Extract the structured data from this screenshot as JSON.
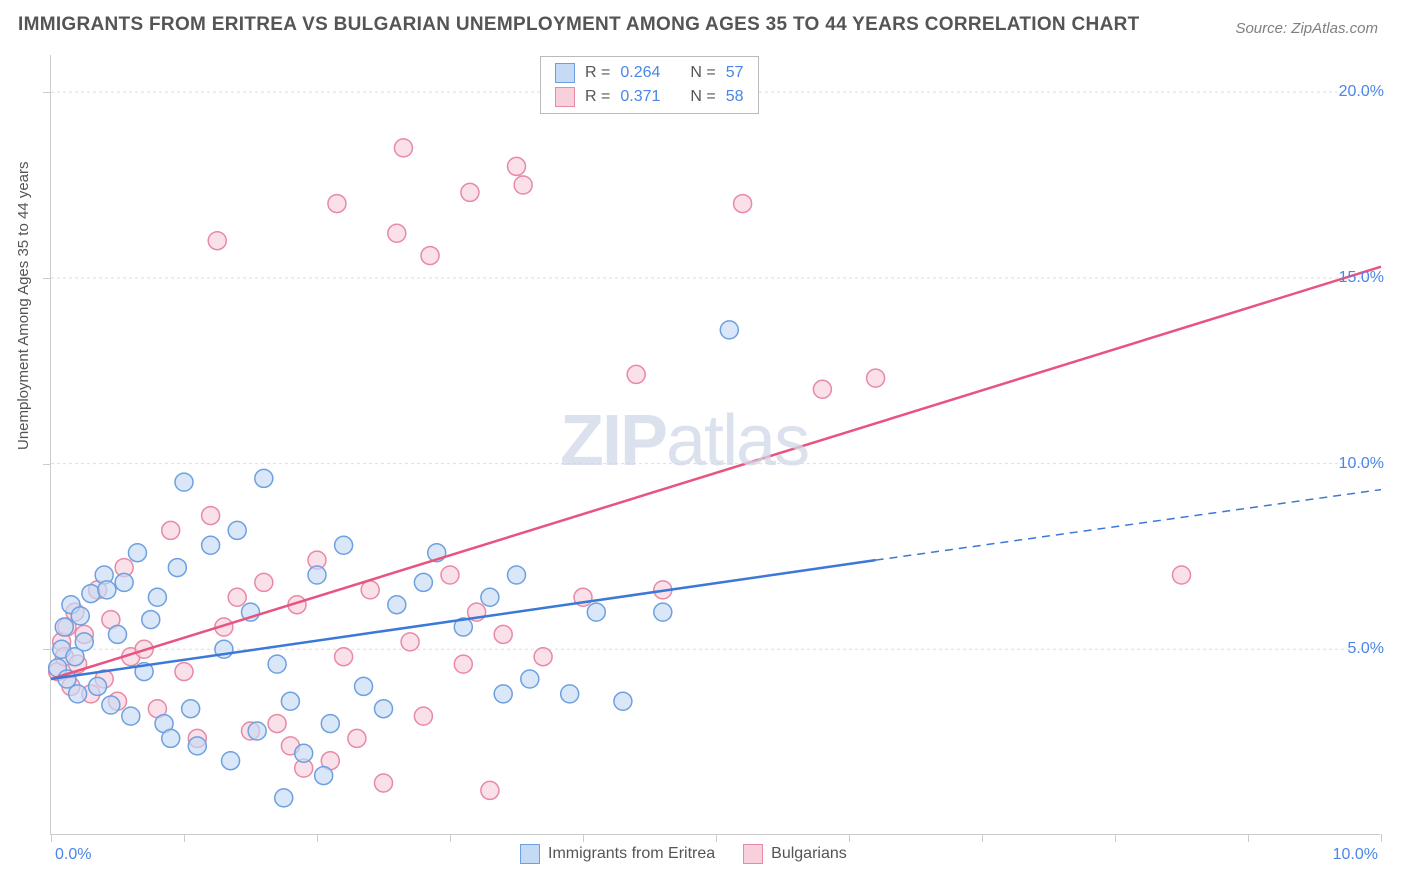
{
  "title": "IMMIGRANTS FROM ERITREA VS BULGARIAN UNEMPLOYMENT AMONG AGES 35 TO 44 YEARS CORRELATION CHART",
  "source": "Source: ZipAtlas.com",
  "y_axis_label": "Unemployment Among Ages 35 to 44 years",
  "watermark_a": "ZIP",
  "watermark_b": "atlas",
  "chart": {
    "type": "scatter",
    "background_color": "#ffffff",
    "grid_color": "#dddddd",
    "axis_color": "#cccccc",
    "tick_label_color": "#4a86e8",
    "text_color": "#555555",
    "xlim": [
      0,
      10
    ],
    "ylim": [
      0,
      21
    ],
    "y_ticks": [
      5,
      10,
      15,
      20
    ],
    "y_tick_labels": [
      "5.0%",
      "10.0%",
      "15.0%",
      "20.0%"
    ],
    "x_tick_edge_labels": [
      "0.0%",
      "10.0%"
    ],
    "x_minor_ticks": [
      0,
      1,
      2,
      3,
      4,
      5,
      6,
      7,
      8,
      9,
      10
    ],
    "point_radius": 9,
    "series": [
      {
        "name": "Immigrants from Eritrea",
        "fill_color": "#c4daf5",
        "stroke_color": "#6ea0e0",
        "r_label": "R =",
        "r_value": "0.264",
        "n_label": "N =",
        "n_value": "57",
        "trend": {
          "x1": 0,
          "y1": 4.2,
          "x2_solid": 6.2,
          "y2_solid": 7.4,
          "x2": 10,
          "y2": 9.3,
          "solid_color": "#3b78d8",
          "dash_color": "#3b78d8"
        },
        "points": [
          [
            0.05,
            4.5
          ],
          [
            0.08,
            5.0
          ],
          [
            0.1,
            5.6
          ],
          [
            0.12,
            4.2
          ],
          [
            0.15,
            6.2
          ],
          [
            0.18,
            4.8
          ],
          [
            0.2,
            3.8
          ],
          [
            0.22,
            5.9
          ],
          [
            0.25,
            5.2
          ],
          [
            0.3,
            6.5
          ],
          [
            0.35,
            4.0
          ],
          [
            0.4,
            7.0
          ],
          [
            0.42,
            6.6
          ],
          [
            0.45,
            3.5
          ],
          [
            0.5,
            5.4
          ],
          [
            0.55,
            6.8
          ],
          [
            0.6,
            3.2
          ],
          [
            0.65,
            7.6
          ],
          [
            0.7,
            4.4
          ],
          [
            0.75,
            5.8
          ],
          [
            0.8,
            6.4
          ],
          [
            0.85,
            3.0
          ],
          [
            0.9,
            2.6
          ],
          [
            0.95,
            7.2
          ],
          [
            1.0,
            9.5
          ],
          [
            1.05,
            3.4
          ],
          [
            1.1,
            2.4
          ],
          [
            1.2,
            7.8
          ],
          [
            1.3,
            5.0
          ],
          [
            1.35,
            2.0
          ],
          [
            1.4,
            8.2
          ],
          [
            1.5,
            6.0
          ],
          [
            1.55,
            2.8
          ],
          [
            1.6,
            9.6
          ],
          [
            1.7,
            4.6
          ],
          [
            1.75,
            1.0
          ],
          [
            1.8,
            3.6
          ],
          [
            1.9,
            2.2
          ],
          [
            2.0,
            7.0
          ],
          [
            2.05,
            1.6
          ],
          [
            2.1,
            3.0
          ],
          [
            2.2,
            7.8
          ],
          [
            2.35,
            4.0
          ],
          [
            2.5,
            3.4
          ],
          [
            2.6,
            6.2
          ],
          [
            2.8,
            6.8
          ],
          [
            2.9,
            7.6
          ],
          [
            3.1,
            5.6
          ],
          [
            3.3,
            6.4
          ],
          [
            3.4,
            3.8
          ],
          [
            3.5,
            7.0
          ],
          [
            3.6,
            4.2
          ],
          [
            3.9,
            3.8
          ],
          [
            4.1,
            6.0
          ],
          [
            4.3,
            3.6
          ],
          [
            5.1,
            13.6
          ],
          [
            4.6,
            6.0
          ]
        ]
      },
      {
        "name": "Bulgarians",
        "fill_color": "#f7d0dc",
        "stroke_color": "#e889a5",
        "r_label": "R =",
        "r_value": "0.371",
        "n_label": "N =",
        "n_value": "58",
        "trend": {
          "x1": 0,
          "y1": 4.2,
          "x2": 10,
          "y2": 15.3,
          "color": "#e75480"
        },
        "points": [
          [
            0.05,
            4.4
          ],
          [
            0.08,
            5.2
          ],
          [
            0.1,
            4.8
          ],
          [
            0.12,
            5.6
          ],
          [
            0.15,
            4.0
          ],
          [
            0.18,
            6.0
          ],
          [
            0.2,
            4.6
          ],
          [
            0.25,
            5.4
          ],
          [
            0.3,
            3.8
          ],
          [
            0.35,
            6.6
          ],
          [
            0.4,
            4.2
          ],
          [
            0.45,
            5.8
          ],
          [
            0.5,
            3.6
          ],
          [
            0.55,
            7.2
          ],
          [
            0.6,
            4.8
          ],
          [
            0.7,
            5.0
          ],
          [
            0.8,
            3.4
          ],
          [
            0.9,
            8.2
          ],
          [
            1.0,
            4.4
          ],
          [
            1.1,
            2.6
          ],
          [
            1.2,
            8.6
          ],
          [
            1.25,
            16.0
          ],
          [
            1.3,
            5.6
          ],
          [
            1.4,
            6.4
          ],
          [
            1.5,
            2.8
          ],
          [
            1.6,
            6.8
          ],
          [
            1.7,
            3.0
          ],
          [
            1.8,
            2.4
          ],
          [
            1.85,
            6.2
          ],
          [
            1.9,
            1.8
          ],
          [
            2.0,
            7.4
          ],
          [
            2.1,
            2.0
          ],
          [
            2.15,
            17.0
          ],
          [
            2.2,
            4.8
          ],
          [
            2.3,
            2.6
          ],
          [
            2.4,
            6.6
          ],
          [
            2.5,
            1.4
          ],
          [
            2.6,
            16.2
          ],
          [
            2.65,
            18.5
          ],
          [
            2.7,
            5.2
          ],
          [
            2.8,
            3.2
          ],
          [
            2.85,
            15.6
          ],
          [
            3.0,
            7.0
          ],
          [
            3.1,
            4.6
          ],
          [
            3.15,
            17.3
          ],
          [
            3.2,
            6.0
          ],
          [
            3.3,
            1.2
          ],
          [
            3.4,
            5.4
          ],
          [
            3.5,
            18.0
          ],
          [
            3.55,
            17.5
          ],
          [
            3.7,
            4.8
          ],
          [
            4.0,
            6.4
          ],
          [
            4.4,
            12.4
          ],
          [
            4.6,
            6.6
          ],
          [
            5.2,
            17.0
          ],
          [
            5.8,
            12.0
          ],
          [
            6.2,
            12.3
          ],
          [
            8.5,
            7.0
          ]
        ]
      }
    ]
  },
  "legend_bottom": {
    "series1": "Immigrants from Eritrea",
    "series2": "Bulgarians"
  }
}
